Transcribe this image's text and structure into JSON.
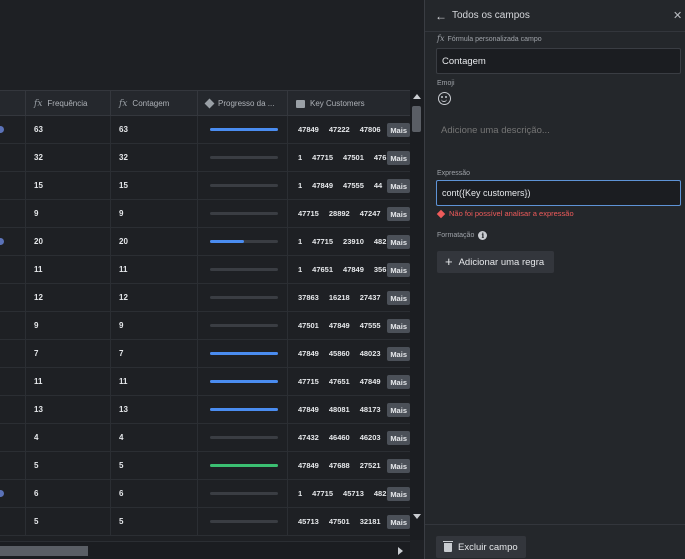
{
  "panel": {
    "title": "Todos os campos",
    "back_icon": "arrow-left-icon",
    "close_icon": "close-icon",
    "formula_label": "Fórmula personalizada campo",
    "name_value": "Contagem",
    "emoji_label": "Emoji",
    "description_placeholder": "Adicione uma descrição...",
    "expression_label": "Expressão",
    "expression_value": "cont({Key customers})",
    "error_text": "Não foi possível analisar a expressão",
    "formatting_label": "Formatação",
    "add_rule_label": "Adicionar uma regra",
    "delete_label": "Excluir campo"
  },
  "table": {
    "columns": [
      "Frequência",
      "Contagem",
      "Progresso da ...",
      "Key Customers"
    ],
    "more_label": "Mais",
    "colors": {
      "blue": "#4a8cf0",
      "green": "#3bbf72",
      "track": "#3a3d43"
    },
    "rows": [
      {
        "dot": true,
        "freq": "63",
        "count": "63",
        "progress": 1.0,
        "color": "blue",
        "kc": [
          "47849",
          "47222",
          "47806"
        ]
      },
      {
        "dot": false,
        "freq": "32",
        "count": "32",
        "progress": 0,
        "color": "blue",
        "kc": [
          "1",
          "47715",
          "47501",
          "476"
        ]
      },
      {
        "dot": false,
        "freq": "15",
        "count": "15",
        "progress": 0,
        "color": "blue",
        "kc": [
          "1",
          "47849",
          "47555",
          "44"
        ]
      },
      {
        "dot": false,
        "freq": "9",
        "count": "9",
        "progress": 0,
        "color": "blue",
        "kc": [
          "47715",
          "28892",
          "47247"
        ]
      },
      {
        "dot": true,
        "freq": "20",
        "count": "20",
        "progress": 0.5,
        "color": "blue",
        "kc": [
          "1",
          "47715",
          "23910",
          "482"
        ]
      },
      {
        "dot": false,
        "freq": "11",
        "count": "11",
        "progress": 0,
        "color": "blue",
        "kc": [
          "1",
          "47651",
          "47849",
          "356"
        ]
      },
      {
        "dot": false,
        "freq": "12",
        "count": "12",
        "progress": 0,
        "color": "blue",
        "kc": [
          "37863",
          "16218",
          "27437"
        ]
      },
      {
        "dot": false,
        "freq": "9",
        "count": "9",
        "progress": 0,
        "color": "blue",
        "kc": [
          "47501",
          "47849",
          "47555"
        ]
      },
      {
        "dot": false,
        "freq": "7",
        "count": "7",
        "progress": 1.0,
        "color": "blue",
        "kc": [
          "47849",
          "45860",
          "48023"
        ]
      },
      {
        "dot": false,
        "freq": "11",
        "count": "11",
        "progress": 1.0,
        "color": "blue",
        "kc": [
          "47715",
          "47651",
          "47849"
        ]
      },
      {
        "dot": false,
        "freq": "13",
        "count": "13",
        "progress": 1.0,
        "color": "blue",
        "kc": [
          "47849",
          "48081",
          "48173"
        ]
      },
      {
        "dot": false,
        "freq": "4",
        "count": "4",
        "progress": 0,
        "color": "blue",
        "kc": [
          "47432",
          "46460",
          "46203"
        ]
      },
      {
        "dot": false,
        "freq": "5",
        "count": "5",
        "progress": 1.0,
        "color": "green",
        "kc": [
          "47849",
          "47688",
          "27521"
        ]
      },
      {
        "dot": true,
        "freq": "6",
        "count": "6",
        "progress": 0,
        "color": "blue",
        "kc": [
          "1",
          "47715",
          "45713",
          "482"
        ]
      },
      {
        "dot": false,
        "freq": "5",
        "count": "5",
        "progress": 0,
        "color": "blue",
        "kc": [
          "45713",
          "47501",
          "32181"
        ]
      }
    ]
  }
}
